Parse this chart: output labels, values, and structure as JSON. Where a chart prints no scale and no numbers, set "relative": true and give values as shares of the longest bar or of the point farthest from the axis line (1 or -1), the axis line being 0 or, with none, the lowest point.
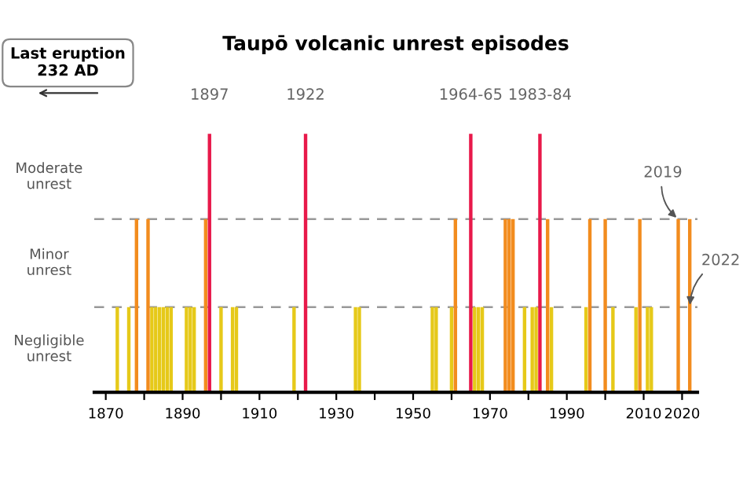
{
  "chart_data": {
    "type": "bar",
    "title": "Taupō volcanic unrest episodes",
    "x": [
      1873,
      1876,
      1878,
      1881,
      1882,
      1883,
      1884,
      1885,
      1886,
      1887,
      1891,
      1892,
      1893,
      1896,
      1897,
      1900,
      1903,
      1904,
      1919,
      1922,
      1935,
      1936,
      1955,
      1956,
      1960,
      1961,
      1965,
      1966,
      1967,
      1968,
      1974,
      1975,
      1976,
      1979,
      1981,
      1982,
      1983,
      1985,
      1986,
      1995,
      1996,
      2000,
      2002,
      2008,
      2009,
      2011,
      2012,
      2019,
      2022
    ],
    "values": [
      0.33,
      0.33,
      0.67,
      0.67,
      0.33,
      0.33,
      0.33,
      0.33,
      0.33,
      0.33,
      0.33,
      0.33,
      0.33,
      0.67,
      1,
      0.33,
      0.33,
      0.33,
      0.33,
      1,
      0.33,
      0.33,
      0.33,
      0.33,
      0.33,
      0.67,
      1,
      0.33,
      0.33,
      0.33,
      0.67,
      0.67,
      0.67,
      0.33,
      0.33,
      0.33,
      1,
      0.67,
      0.33,
      0.33,
      0.67,
      0.67,
      0.33,
      0.33,
      0.67,
      0.33,
      0.33,
      0.67,
      0.67
    ],
    "relative": true,
    "colors": [
      "#e6c919",
      "#e6c919",
      "#f28c1e",
      "#f28c1e",
      "#e6c919",
      "#e6c919",
      "#e6c919",
      "#e6c919",
      "#e6c919",
      "#e6c919",
      "#e6c919",
      "#e6c919",
      "#e6c919",
      "#f28c1e",
      "#e8194a",
      "#e6c919",
      "#e6c919",
      "#e6c919",
      "#e6c919",
      "#e8194a",
      "#e6c919",
      "#e6c919",
      "#e6c919",
      "#e6c919",
      "#e6c919",
      "#f28c1e",
      "#e8194a",
      "#e6c919",
      "#e6c919",
      "#e6c919",
      "#f28c1e",
      "#f28c1e",
      "#f28c1e",
      "#e6c919",
      "#e6c919",
      "#e6c919",
      "#e8194a",
      "#f28c1e",
      "#e6c919",
      "#e6c919",
      "#f28c1e",
      "#f28c1e",
      "#e6c919",
      "#e6c919",
      "#f28c1e",
      "#e6c919",
      "#e6c919",
      "#f28c1e",
      "#f28c1e"
    ],
    "xlim": [
      1867,
      2024
    ],
    "xticks": [
      1870,
      {
        "value": 1880,
        "label": null
      },
      1890,
      {
        "value": 1900,
        "label": null
      },
      1910,
      {
        "value": 1920,
        "label": null
      },
      1930,
      {
        "value": 1940,
        "label": null
      },
      1950,
      {
        "value": 1960,
        "label": null
      },
      1970,
      {
        "value": 1980,
        "label": null
      },
      1990,
      {
        "value": 2000,
        "label": null
      },
      2010,
      2020
    ],
    "ref_lines": [
      {
        "axis": "y",
        "value": 0.33,
        "color": "#999999",
        "line_style": "dashed"
      },
      {
        "axis": "y",
        "value": 0.67,
        "color": "#999999",
        "line_style": "dashed"
      }
    ],
    "annotations": [
      "Last eruption\n232 AD",
      "Negligible\nunrest",
      "Minor\nunrest",
      "Moderate\nunrest",
      {
        "text": "1897",
        "x": 1897,
        "y": 1
      },
      {
        "text": "1922",
        "x": 1922,
        "y": 1
      },
      {
        "text": "1964-65",
        "x": 1965,
        "y": 1
      },
      {
        "text": "1983-84",
        "x": 1983,
        "y": 1
      },
      {
        "text": "2019",
        "x": 2019,
        "y": 0.67
      },
      {
        "text": "2022",
        "x": 2022,
        "y": 0.33
      }
    ],
    "grid": false,
    "legend": false
  }
}
